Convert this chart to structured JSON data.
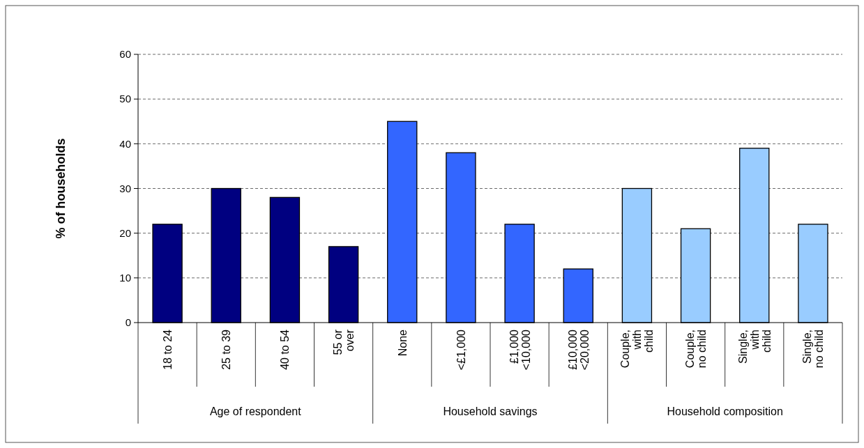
{
  "chart_data": {
    "type": "bar",
    "ylabel": "% of households",
    "categories": [
      "18 to 24",
      "25 to 39",
      "40 to 54",
      "55 or\nover",
      "None",
      "<£1,000",
      "£1,000\n<10,000",
      "£10,000\n<20,000",
      "Couple,\nwith\nchild",
      "Couple,\nno child",
      "Single,\nwith\nchild",
      "Single,\nno child"
    ],
    "values": [
      22,
      30,
      28,
      17,
      45,
      38,
      22,
      12,
      30,
      21,
      39,
      22
    ],
    "colors": [
      "#000080",
      "#000080",
      "#000080",
      "#000080",
      "#3366ff",
      "#3366ff",
      "#3366ff",
      "#3366ff",
      "#99ccff",
      "#99ccff",
      "#99ccff",
      "#99ccff"
    ],
    "annotations": [
      "Age of respondent",
      "Household savings",
      "Household composition"
    ],
    "ylim": [
      0,
      60
    ],
    "yticks": [
      0,
      10,
      20,
      30,
      40,
      50,
      60
    ],
    "grid": "y"
  }
}
